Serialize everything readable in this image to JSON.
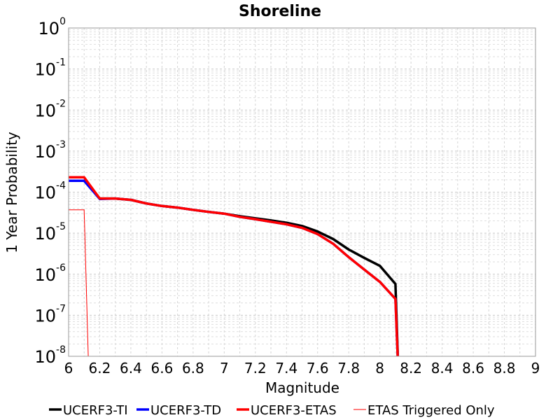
{
  "chart_data": {
    "type": "line",
    "title": "Shoreline",
    "xlabel": "Magnitude",
    "ylabel": "1 Year Probability",
    "xlim": [
      6,
      9
    ],
    "ylim_log10": [
      -8,
      0
    ],
    "y_scale": "log",
    "grid": true,
    "x_ticks": [
      "6",
      "6.2",
      "6.4",
      "6.6",
      "6.8",
      "7",
      "7.2",
      "7.4",
      "7.6",
      "7.8",
      "8",
      "8.2",
      "8.4",
      "8.6",
      "8.8",
      "9"
    ],
    "y_ticks": [
      {
        "base": "10",
        "exp": "0"
      },
      {
        "base": "10",
        "exp": "-1"
      },
      {
        "base": "10",
        "exp": "-2"
      },
      {
        "base": "10",
        "exp": "-3"
      },
      {
        "base": "10",
        "exp": "-4"
      },
      {
        "base": "10",
        "exp": "-5"
      },
      {
        "base": "10",
        "exp": "-6"
      },
      {
        "base": "10",
        "exp": "-7"
      },
      {
        "base": "10",
        "exp": "-8"
      }
    ],
    "legend_position": "bottom",
    "series": [
      {
        "name": "UCERF3-TI",
        "color": "#000000",
        "width": "thick",
        "x": [
          6.0,
          6.1,
          6.2,
          6.3,
          6.4,
          6.5,
          6.6,
          6.7,
          6.8,
          6.9,
          7.0,
          7.1,
          7.2,
          7.3,
          7.4,
          7.5,
          7.6,
          7.7,
          7.8,
          7.9,
          8.0,
          8.1,
          8.12
        ],
        "y": [
          0.00019,
          0.00019,
          7e-05,
          7e-05,
          6.5e-05,
          5.3e-05,
          4.6e-05,
          4.2e-05,
          3.7e-05,
          3.3e-05,
          3e-05,
          2.6e-05,
          2.3e-05,
          2.05e-05,
          1.8e-05,
          1.5e-05,
          1.1e-05,
          7.2e-06,
          4e-06,
          2.5e-06,
          1.6e-06,
          5.8e-07,
          1e-09
        ]
      },
      {
        "name": "UCERF3-TD",
        "color": "#0000ff",
        "width": "thick",
        "x": [
          6.0,
          6.1,
          6.2,
          6.3,
          6.4,
          6.5,
          6.6,
          6.7,
          6.8,
          6.9,
          7.0,
          7.1,
          7.2,
          7.3,
          7.4,
          7.5,
          7.6,
          7.7,
          7.8,
          7.9,
          8.0,
          8.1,
          8.12
        ],
        "y": [
          0.00019,
          0.00019,
          6.8e-05,
          7e-05,
          6.5e-05,
          5.3e-05,
          4.6e-05,
          4.2e-05,
          3.7e-05,
          3.3e-05,
          3e-05,
          2.5e-05,
          2.2e-05,
          1.9e-05,
          1.65e-05,
          1.35e-05,
          9.5e-06,
          5.5e-06,
          2.6e-06,
          1.3e-06,
          6.5e-07,
          2.5e-07,
          1e-09
        ]
      },
      {
        "name": "UCERF3-ETAS",
        "color": "#ff0000",
        "width": "thick",
        "x": [
          6.0,
          6.1,
          6.2,
          6.3,
          6.4,
          6.5,
          6.6,
          6.7,
          6.8,
          6.9,
          7.0,
          7.1,
          7.2,
          7.3,
          7.4,
          7.5,
          7.6,
          7.7,
          7.8,
          7.9,
          8.0,
          8.1,
          8.12
        ],
        "y": [
          0.00023,
          0.00023,
          7e-05,
          7e-05,
          6.5e-05,
          5.3e-05,
          4.6e-05,
          4.2e-05,
          3.7e-05,
          3.3e-05,
          3e-05,
          2.5e-05,
          2.2e-05,
          1.9e-05,
          1.65e-05,
          1.35e-05,
          9.5e-06,
          5.5e-06,
          2.6e-06,
          1.3e-06,
          6.5e-07,
          2.5e-07,
          1e-09
        ]
      },
      {
        "name": "ETAS Triggered Only",
        "color": "#ff0000",
        "width": "thin",
        "x": [
          6.0,
          6.1,
          6.13
        ],
        "y": [
          3.7e-05,
          3.7e-05,
          1e-09
        ]
      }
    ]
  }
}
